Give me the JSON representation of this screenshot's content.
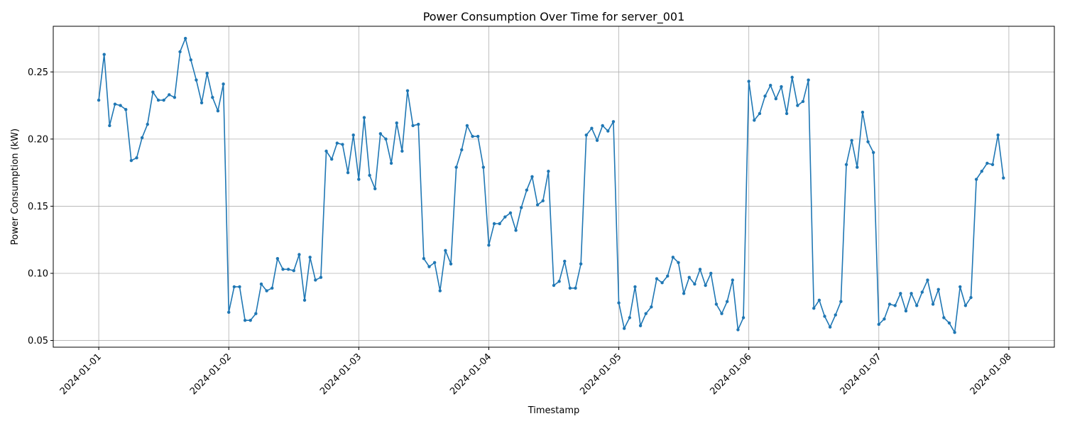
{
  "chart_data": {
    "type": "line",
    "title": "Power Consumption Over Time for server_001",
    "xlabel": "Timestamp",
    "ylabel": "Power Consumption (kW)",
    "xlim": [
      "2023-12-31T15:36",
      "2024-01-08T08:24"
    ],
    "ylim": [
      0.045,
      0.284
    ],
    "x_ticks": [
      "2024-01-01",
      "2024-01-02",
      "2024-01-03",
      "2024-01-04",
      "2024-01-05",
      "2024-01-06",
      "2024-01-07",
      "2024-01-08"
    ],
    "y_ticks": [
      "0.05",
      "0.10",
      "0.15",
      "0.20",
      "0.25"
    ],
    "grid": true,
    "marker": "circle",
    "x_start": "2024-01-01T00:00",
    "x_step": "1h",
    "series": [
      {
        "name": "",
        "color": "#1f77b4",
        "values": [
          0.229,
          0.263,
          0.21,
          0.226,
          0.225,
          0.222,
          0.184,
          0.186,
          0.201,
          0.211,
          0.235,
          0.229,
          0.229,
          0.233,
          0.231,
          0.265,
          0.275,
          0.259,
          0.244,
          0.227,
          0.249,
          0.231,
          0.221,
          0.241,
          0.071,
          0.09,
          0.09,
          0.065,
          0.065,
          0.07,
          0.092,
          0.087,
          0.089,
          0.111,
          0.103,
          0.103,
          0.102,
          0.114,
          0.08,
          0.112,
          0.095,
          0.097,
          0.191,
          0.185,
          0.197,
          0.196,
          0.175,
          0.203,
          0.17,
          0.216,
          0.173,
          0.163,
          0.204,
          0.2,
          0.182,
          0.212,
          0.191,
          0.236,
          0.21,
          0.211,
          0.111,
          0.105,
          0.108,
          0.087,
          0.117,
          0.107,
          0.179,
          0.192,
          0.21,
          0.202,
          0.202,
          0.179,
          0.121,
          0.137,
          0.137,
          0.142,
          0.145,
          0.132,
          0.149,
          0.162,
          0.172,
          0.151,
          0.154,
          0.176,
          0.091,
          0.094,
          0.109,
          0.089,
          0.089,
          0.107,
          0.203,
          0.208,
          0.199,
          0.21,
          0.206,
          0.213,
          0.078,
          0.059,
          0.067,
          0.09,
          0.061,
          0.07,
          0.075,
          0.096,
          0.093,
          0.098,
          0.112,
          0.108,
          0.085,
          0.097,
          0.092,
          0.103,
          0.091,
          0.1,
          0.077,
          0.07,
          0.079,
          0.095,
          0.058,
          0.067,
          0.243,
          0.214,
          0.219,
          0.232,
          0.24,
          0.23,
          0.239,
          0.219,
          0.246,
          0.225,
          0.228,
          0.244,
          0.074,
          0.08,
          0.068,
          0.06,
          0.069,
          0.079,
          0.181,
          0.199,
          0.179,
          0.22,
          0.198,
          0.19,
          0.062,
          0.066,
          0.077,
          0.076,
          0.085,
          0.072,
          0.085,
          0.076,
          0.086,
          0.095,
          0.077,
          0.088,
          0.067,
          0.063,
          0.056,
          0.09,
          0.076,
          0.082,
          0.17,
          0.176,
          0.182,
          0.181,
          0.203,
          0.171
        ]
      }
    ]
  }
}
